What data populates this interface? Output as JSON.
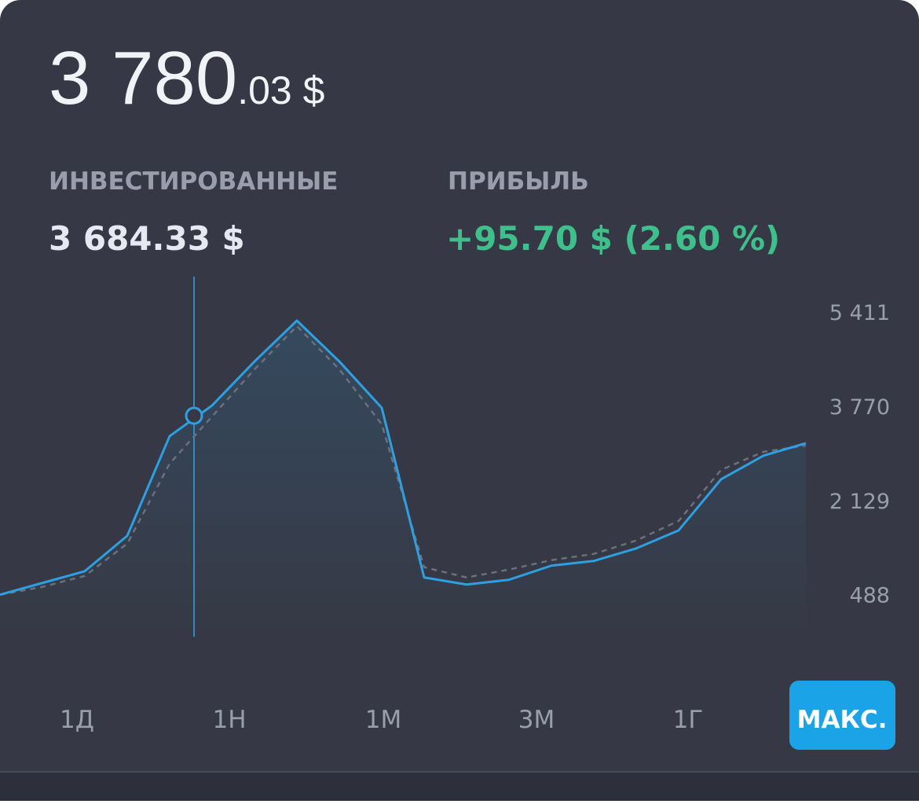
{
  "header": {
    "amount_integer": "3 780",
    "amount_fraction": ".03 $"
  },
  "stats": [
    {
      "label": "ИНВЕСТИРОВАННЫЕ",
      "value": "3 684.33 $"
    },
    {
      "label": "ПРИБЫЛЬ",
      "value": "+95.70 $ (2.60 %)"
    }
  ],
  "chart_data": {
    "type": "line",
    "series": [
      {
        "color": "#2e9fe0",
        "style": "solid",
        "values": [
          488,
          693,
          898,
          1514,
          3250,
          3784,
          4550,
          5261,
          4550,
          3743,
          789,
          666,
          748,
          994,
          1076,
          1295,
          1609,
          2498,
          2909,
          3127
        ]
      },
      {
        "color": "#6b6f7e",
        "style": "dashed",
        "values": [
          488,
          625,
          816,
          1377,
          2772,
          3592,
          4413,
          5165,
          4413,
          3456,
          967,
          789,
          926,
          1090,
          1199,
          1432,
          1774,
          2662,
          2977,
          3086
        ]
      }
    ],
    "ylim": [
      -200,
      6000
    ],
    "yticks": [
      {
        "value": 5411,
        "label": "5 411"
      },
      {
        "value": 3770,
        "label": "3 770"
      },
      {
        "value": 2129,
        "label": "2 129"
      },
      488
    ]
  },
  "ranges": {
    "items": [
      "1Д",
      "1Н",
      "1М",
      "3М",
      "1Г",
      "МАКС."
    ],
    "active": 5
  }
}
